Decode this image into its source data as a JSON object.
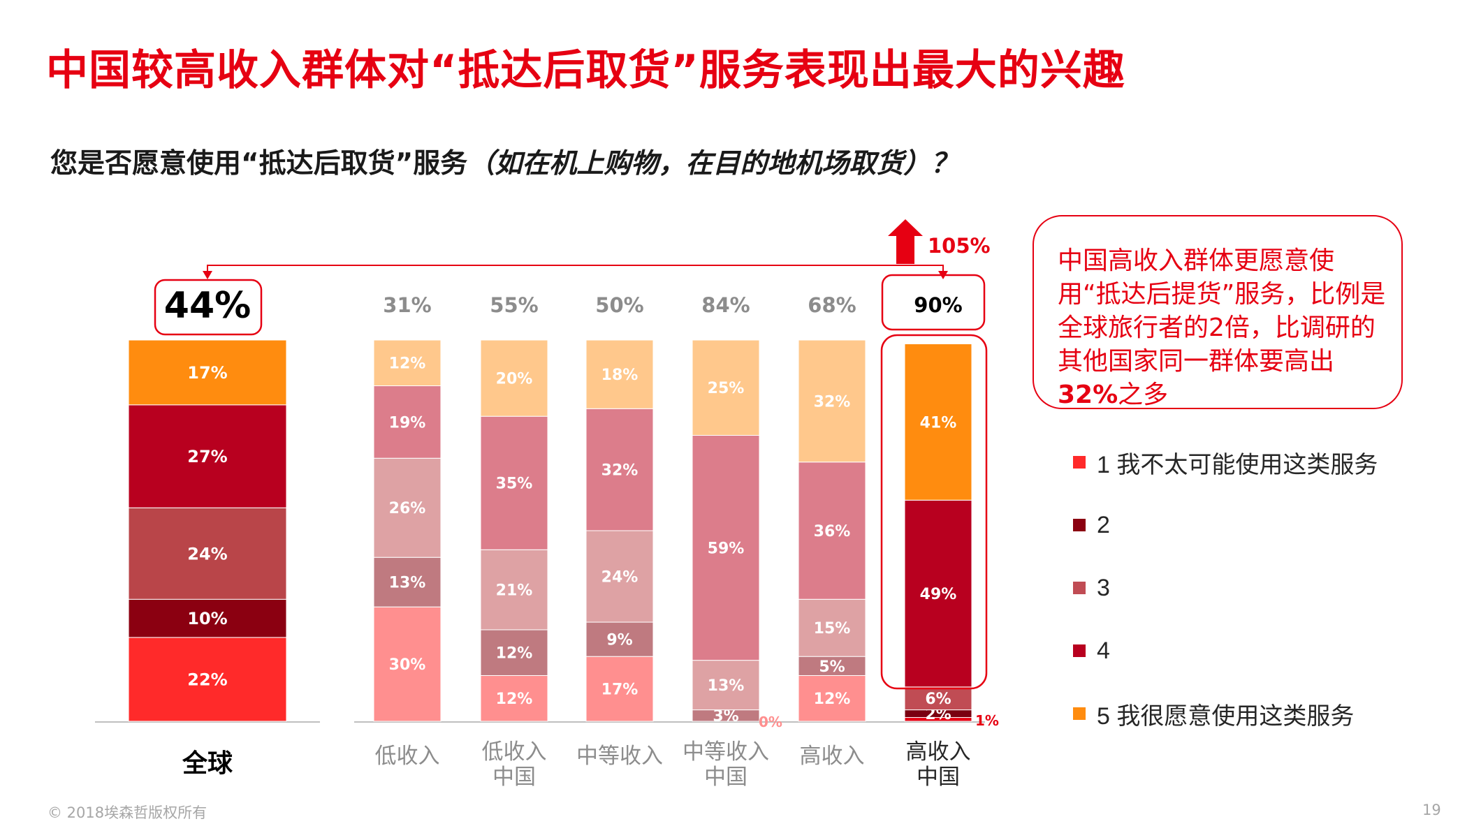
{
  "page": {
    "title": "中国较高收入群体对“抵达后取货”服务表现出最大的兴趣",
    "question_main": "您是否愿意使用“抵达后取货”服务",
    "question_note": "（如在机上购物，在目的地机场取货）？",
    "footer": "© 2018埃森哲版权所有",
    "page_number": "19"
  },
  "callout": {
    "line_a": "中国高收入群体更愿意使用“抵达后提货”服务，比例是全球旅行者的2倍，比调研的其他国家同一群体要高出",
    "highlight": "32%",
    "line_b": "之多"
  },
  "chart_data": {
    "type": "bar",
    "stacked": true,
    "title": "",
    "ylim": [
      0,
      100
    ],
    "categories": [
      {
        "label": "全球",
        "total": "44%"
      },
      {
        "label": "低收入",
        "total": "31%"
      },
      {
        "label": "低收入\n中国",
        "total": "55%"
      },
      {
        "label": "中等收入",
        "total": "50%"
      },
      {
        "label": "中等收入\n中国",
        "total": "84%"
      },
      {
        "label": "高收入",
        "total": "68%"
      },
      {
        "label": "高收入\n中国",
        "total": "90%"
      }
    ],
    "series": [
      {
        "name": "1  我不太可能使用这类服务",
        "values": [
          22,
          30,
          12,
          17,
          0,
          12,
          1
        ]
      },
      {
        "name": "2",
        "values": [
          10,
          13,
          12,
          9,
          3,
          5,
          2
        ]
      },
      {
        "name": "3",
        "values": [
          24,
          26,
          21,
          24,
          13,
          15,
          6
        ]
      },
      {
        "name": "4",
        "values": [
          27,
          19,
          35,
          32,
          59,
          36,
          49
        ]
      },
      {
        "name": "5  我很愿意使用这类服务",
        "values": [
          17,
          12,
          20,
          18,
          25,
          32,
          41
        ]
      }
    ],
    "global_colors": [
      "#ff2a2a",
      "#8b0011",
      "#b94549",
      "#b8001f",
      "#ff8c0f"
    ],
    "segment_colors": [
      "#ff8f8f",
      "#bf7a80",
      "#dea2a4",
      "#dc7d8b",
      "#ffc88c"
    ],
    "highlight_colors": [
      "#e60012",
      "#7a0010",
      "#c04c54",
      "#b8001f",
      "#ff8c0f"
    ],
    "legend_colors": [
      "#ff2a2a",
      "#8b0011",
      "#c04c54",
      "#b8001f",
      "#ff8c0f"
    ],
    "zero_labels": [
      "0%",
      "1%"
    ],
    "delta_label": "105%"
  }
}
